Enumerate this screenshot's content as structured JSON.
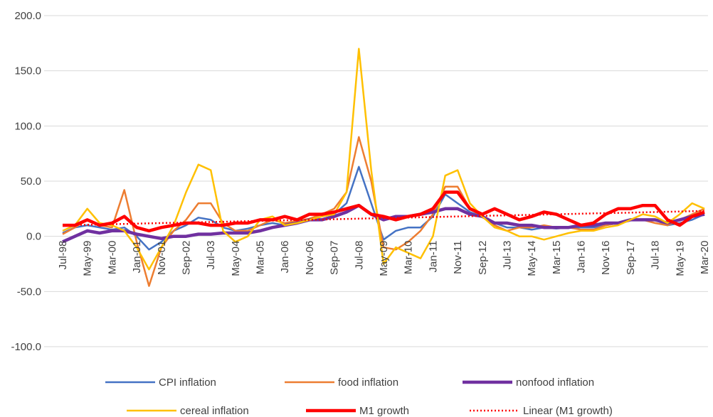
{
  "chart_data": {
    "type": "line",
    "categories": [
      "Jul-98",
      null,
      "May-99",
      null,
      "Mar-00",
      null,
      "Jan-01",
      null,
      "Nov-01",
      null,
      "Sep-02",
      null,
      "Jul-03",
      null,
      "May-04",
      null,
      "Mar-05",
      null,
      "Jan-06",
      null,
      "Nov-06",
      null,
      "Sep-07",
      null,
      "Jul-08",
      null,
      "May-09",
      null,
      "Mar-10",
      null,
      "Jan-11",
      null,
      "Nov-11",
      null,
      "Sep-12",
      null,
      "Jul-13",
      null,
      "May-14",
      null,
      "Mar-15",
      null,
      "Jan-16",
      null,
      "Nov-16",
      null,
      "Sep-17",
      null,
      "Jul-18",
      null,
      "May-19",
      null,
      "Mar-20"
    ],
    "series": [
      {
        "name": "CPI inflation",
        "color": "#4472c4",
        "linewidth": 2.5,
        "linestyle": "solid",
        "values": [
          3,
          8,
          10,
          8,
          6,
          8,
          0,
          -12,
          -5,
          5,
          10,
          17,
          15,
          8,
          5,
          7,
          10,
          12,
          10,
          12,
          15,
          18,
          20,
          30,
          63,
          30,
          -3,
          5,
          8,
          8,
          18,
          38,
          30,
          22,
          18,
          12,
          8,
          8,
          6,
          8,
          7,
          8,
          8,
          8,
          10,
          12,
          15,
          15,
          15,
          10,
          12,
          15,
          20
        ]
      },
      {
        "name": "food inflation",
        "color": "#ed7d31",
        "linewidth": 2.5,
        "linestyle": "solid",
        "values": [
          2,
          8,
          15,
          10,
          8,
          42,
          -5,
          -45,
          -10,
          5,
          15,
          30,
          30,
          12,
          5,
          5,
          10,
          15,
          12,
          14,
          16,
          20,
          25,
          40,
          90,
          50,
          -10,
          -12,
          -5,
          5,
          20,
          45,
          45,
          25,
          18,
          10,
          5,
          8,
          8,
          10,
          8,
          8,
          6,
          6,
          10,
          12,
          15,
          15,
          12,
          10,
          15,
          20,
          25
        ]
      },
      {
        "name": "nonfood inflation",
        "color": "#7030a0",
        "linewidth": 4.5,
        "linestyle": "solid",
        "values": [
          -5,
          0,
          5,
          3,
          5,
          5,
          2,
          0,
          -2,
          0,
          0,
          2,
          2,
          3,
          3,
          3,
          5,
          8,
          10,
          12,
          15,
          15,
          18,
          22,
          28,
          20,
          15,
          18,
          18,
          20,
          22,
          25,
          25,
          20,
          18,
          12,
          12,
          10,
          10,
          8,
          8,
          8,
          10,
          10,
          12,
          12,
          15,
          15,
          15,
          12,
          15,
          18,
          20
        ]
      },
      {
        "name": "cereal inflation",
        "color": "#ffc000",
        "linewidth": 2.5,
        "linestyle": "solid",
        "values": [
          5,
          10,
          25,
          12,
          10,
          5,
          -10,
          -30,
          -10,
          10,
          40,
          65,
          60,
          5,
          -5,
          0,
          15,
          18,
          10,
          12,
          15,
          18,
          20,
          40,
          170,
          60,
          -25,
          -10,
          -15,
          -20,
          0,
          55,
          60,
          30,
          18,
          8,
          5,
          0,
          0,
          -3,
          0,
          3,
          5,
          5,
          8,
          10,
          15,
          20,
          18,
          12,
          20,
          30,
          25
        ]
      },
      {
        "name": "M1 growth",
        "color": "#ff0000",
        "linewidth": 4.5,
        "linestyle": "solid",
        "values": [
          10,
          10,
          15,
          10,
          12,
          18,
          8,
          5,
          8,
          10,
          12,
          12,
          10,
          10,
          12,
          12,
          15,
          15,
          18,
          15,
          20,
          20,
          22,
          25,
          28,
          20,
          18,
          15,
          18,
          20,
          25,
          40,
          40,
          25,
          20,
          25,
          20,
          15,
          18,
          22,
          20,
          15,
          10,
          12,
          20,
          25,
          25,
          28,
          28,
          15,
          10,
          18,
          22
        ]
      },
      {
        "name": "Linear (M1 growth)",
        "color": "#ff0000",
        "linewidth": 2.5,
        "linestyle": "dotted",
        "values": [
          10,
          10.25,
          10.5,
          10.75,
          11,
          11.25,
          11.5,
          11.75,
          12,
          12.25,
          12.5,
          12.75,
          13,
          13.25,
          13.5,
          13.75,
          14,
          14.25,
          14.5,
          14.75,
          15,
          15.25,
          15.5,
          15.75,
          16,
          16.25,
          16.5,
          16.75,
          17,
          17.25,
          17.5,
          17.75,
          18,
          18.25,
          18.5,
          18.75,
          19,
          19.25,
          19.5,
          19.75,
          20,
          20.25,
          20.5,
          20.75,
          21,
          21.25,
          21.5,
          21.75,
          22,
          22.25,
          22.5,
          22.75,
          23
        ]
      }
    ],
    "ylim": [
      -100,
      200
    ],
    "yticks": [
      {
        "value": -100,
        "label": "-100.0"
      },
      {
        "value": -50,
        "label": "-50.0"
      },
      {
        "value": 0,
        "label": "0.0"
      },
      {
        "value": 50,
        "label": "50.0"
      },
      {
        "value": 100,
        "label": "100.0"
      },
      {
        "value": 150,
        "label": "150.0"
      },
      {
        "value": 200,
        "label": "200.0"
      }
    ],
    "grid": true,
    "legend": "bottom"
  }
}
